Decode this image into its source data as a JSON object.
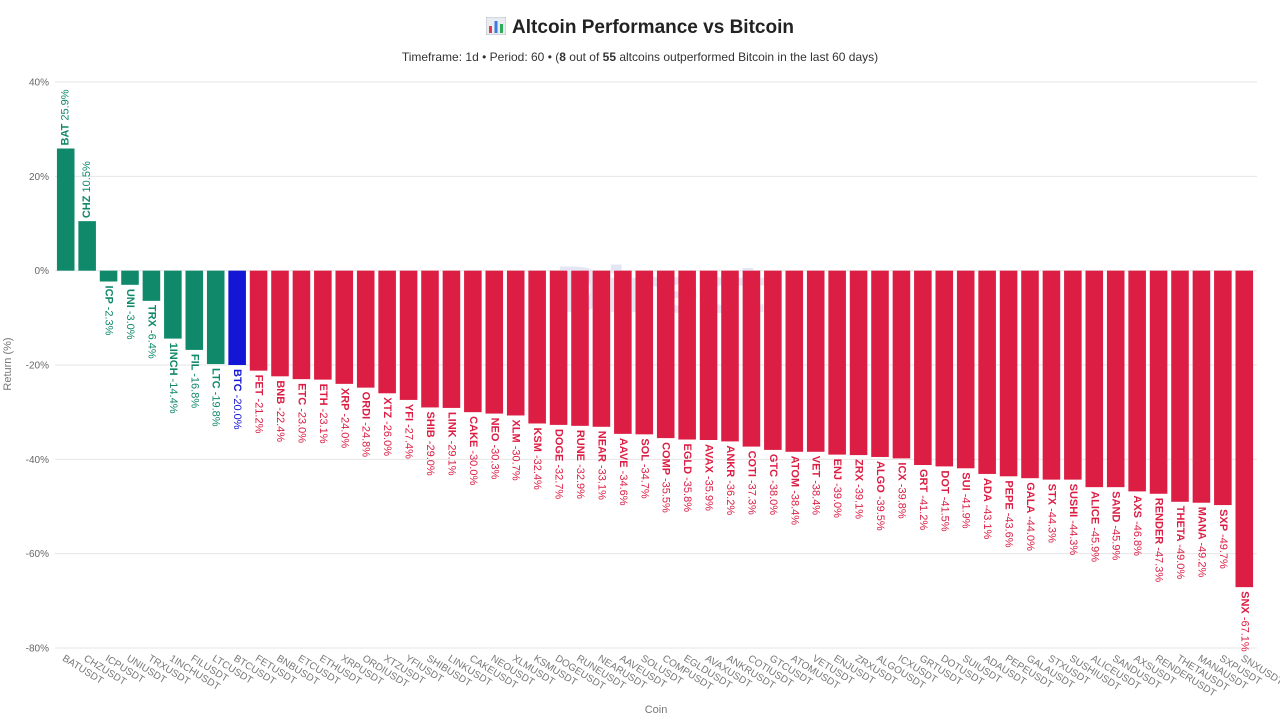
{
  "title": "Altcoin Performance vs Bitcoin",
  "title_icon": "bar-chart-icon",
  "subtitle": {
    "timeframe": "Timeframe: 1d",
    "period": "Period: 60",
    "outperform_count": "8",
    "out_of_text": "out of",
    "total_count": "55",
    "tail_text": "altcoins outperformed Bitcoin in the last 60 days",
    "separator": "•"
  },
  "watermark": "Direct",
  "colors": {
    "outperform": "#10896b",
    "underperform": "#dc1e44",
    "btc": "#1515d6",
    "grid": "#e6e6e6"
  },
  "chart_data": {
    "type": "bar",
    "title": "Altcoin Performance vs Bitcoin",
    "xlabel": "Coin",
    "ylabel": "Return (%)",
    "ylim": [
      -80,
      40
    ],
    "yticks": [
      40,
      20,
      0,
      -20,
      -40,
      -60,
      -80
    ],
    "ytick_labels": [
      "40%",
      "20%",
      "0%",
      "-20%",
      "-40%",
      "-60%",
      "-80%"
    ],
    "grid": true,
    "categories": [
      "BATUSDT",
      "CHZUSDT",
      "ICPUSDT",
      "UNIUSDT",
      "TRXUSDT",
      "1INCHUSDT",
      "FILUSDT",
      "LTCUSDT",
      "BTCUSDT",
      "FETUSDT",
      "BNBUSDT",
      "ETCUSDT",
      "ETHUSDT",
      "XRPUSDT",
      "ORDIUSDT",
      "XTZUSDT",
      "YFIUSDT",
      "SHIBUSDT",
      "LINKUSDT",
      "CAKEUSDT",
      "NEOUSDT",
      "XLMUSDT",
      "KSMUSDT",
      "DOGEUSDT",
      "RUNEUSDT",
      "NEARUSDT",
      "AAVEUSDT",
      "SOLUSDT",
      "COMPUSDT",
      "EGLDUSDT",
      "AVAXUSDT",
      "ANKRUSDT",
      "COTIUSDT",
      "GTCUSDT",
      "ATOMUSDT",
      "VETUSDT",
      "ENJUSDT",
      "ZRXUSDT",
      "ALGOUSDT",
      "ICXUSDT",
      "GRTUSDT",
      "DOTUSDT",
      "SUIUSDT",
      "ADAUSDT",
      "PEPEUSDT",
      "GALAUSDT",
      "STXUSDT",
      "SUSHIUSDT",
      "ALICEUSDT",
      "SANDUSDT",
      "AXSUSDT",
      "RENDERUSDT",
      "THETAUSDT",
      "MANAUSDT",
      "SXPUSDT",
      "SNXUSDT"
    ],
    "symbols": [
      "BAT",
      "CHZ",
      "ICP",
      "UNI",
      "TRX",
      "1INCH",
      "FIL",
      "LTC",
      "BTC",
      "FET",
      "BNB",
      "ETC",
      "ETH",
      "XRP",
      "ORDI",
      "XTZ",
      "YFI",
      "SHIB",
      "LINK",
      "CAKE",
      "NEO",
      "XLM",
      "KSM",
      "DOGE",
      "RUNE",
      "NEAR",
      "AAVE",
      "SOL",
      "COMP",
      "EGLD",
      "AVAX",
      "ANKR",
      "COTI",
      "GTC",
      "ATOM",
      "VET",
      "ENJ",
      "ZRX",
      "ALGO",
      "ICX",
      "GRT",
      "DOT",
      "SUI",
      "ADA",
      "PEPE",
      "GALA",
      "STX",
      "SUSHI",
      "ALICE",
      "SAND",
      "AXS",
      "RENDER",
      "THETA",
      "MANA",
      "SXP",
      "SNX"
    ],
    "values": [
      25.9,
      10.5,
      -2.3,
      -3.0,
      -6.4,
      -14.4,
      -16.8,
      -19.8,
      -20.0,
      -21.2,
      -22.4,
      -23.0,
      -23.1,
      -24.0,
      -24.8,
      -26.0,
      -27.4,
      -29.0,
      -29.1,
      -30.0,
      -30.3,
      -30.7,
      -32.4,
      -32.7,
      -32.9,
      -33.1,
      -34.6,
      -34.7,
      -35.5,
      -35.8,
      -35.9,
      -36.2,
      -37.3,
      -38.0,
      -38.4,
      -38.4,
      -39.0,
      -39.1,
      -39.5,
      -39.8,
      -41.2,
      -41.5,
      -41.9,
      -43.1,
      -43.6,
      -44.0,
      -44.3,
      -44.3,
      -45.9,
      -45.9,
      -46.8,
      -47.3,
      -49.0,
      -49.2,
      -49.7,
      -67.1
    ],
    "value_labels": [
      "25.9%",
      "10.5%",
      "-2.3%",
      "-3.0%",
      "-6.4%",
      "-14.4%",
      "-16.8%",
      "-19.8%",
      "-20.0%",
      "-21.2%",
      "-22.4%",
      "-23.0%",
      "-23.1%",
      "-24.0%",
      "-24.8%",
      "-26.0%",
      "-27.4%",
      "-29.0%",
      "-29.1%",
      "-30.0%",
      "-30.3%",
      "-30.7%",
      "-32.4%",
      "-32.7%",
      "-32.9%",
      "-33.1%",
      "-34.6%",
      "-34.7%",
      "-35.5%",
      "-35.8%",
      "-35.9%",
      "-36.2%",
      "-37.3%",
      "-38.0%",
      "-38.4%",
      "-38.4%",
      "-39.0%",
      "-39.1%",
      "-39.5%",
      "-39.8%",
      "-41.2%",
      "-41.5%",
      "-41.9%",
      "-43.1%",
      "-43.6%",
      "-44.0%",
      "-44.3%",
      "-44.3%",
      "-45.9%",
      "-45.9%",
      "-46.8%",
      "-47.3%",
      "-49.0%",
      "-49.2%",
      "-49.7%",
      "-67.1%"
    ],
    "highlight": "BTCUSDT"
  }
}
